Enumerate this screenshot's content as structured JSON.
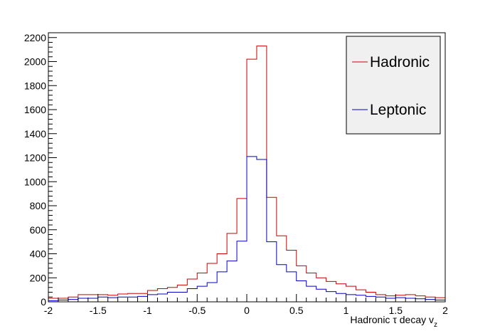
{
  "chart_data": {
    "type": "line",
    "title": "",
    "xlabel": "Hadronic τ decay v",
    "xlabel_sub": "z",
    "ylabel": "",
    "xlim": [
      -2,
      2
    ],
    "ylim": [
      0,
      2240
    ],
    "x_ticks": [
      -2,
      -1.5,
      -1,
      -0.5,
      0,
      0.5,
      1,
      1.5,
      2
    ],
    "x_tick_labels": [
      "-2",
      "-1.5",
      "-1",
      "-0.5",
      "0",
      "0.5",
      "1",
      "1.5",
      "2"
    ],
    "y_ticks": [
      0,
      200,
      400,
      600,
      800,
      1000,
      1200,
      1400,
      1600,
      1800,
      2000,
      2200
    ],
    "y_tick_labels": [
      "0",
      "200",
      "400",
      "600",
      "800",
      "1000",
      "1200",
      "1400",
      "1600",
      "1800",
      "2000",
      "2200"
    ],
    "grid": false,
    "legend_position": "top-right",
    "bin_edges": [
      -2.0,
      -1.9,
      -1.8,
      -1.7,
      -1.6,
      -1.5,
      -1.4,
      -1.3,
      -1.2,
      -1.1,
      -1.0,
      -0.9,
      -0.8,
      -0.7,
      -0.6,
      -0.5,
      -0.4,
      -0.3,
      -0.2,
      -0.1,
      0.0,
      0.1,
      0.2,
      0.3,
      0.4,
      0.5,
      0.6,
      0.7,
      0.8,
      0.9,
      1.0,
      1.1,
      1.2,
      1.3,
      1.4,
      1.5,
      1.6,
      1.7,
      1.8,
      1.9,
      2.0
    ],
    "series": [
      {
        "name": "Hadronic",
        "color": "#cc0000",
        "values": [
          30,
          30,
          40,
          60,
          60,
          60,
          55,
          65,
          70,
          70,
          95,
          110,
          120,
          140,
          190,
          240,
          320,
          400,
          570,
          860,
          2020,
          2130,
          870,
          550,
          430,
          300,
          240,
          200,
          170,
          150,
          130,
          100,
          80,
          60,
          50,
          55,
          60,
          50,
          40,
          35
        ]
      },
      {
        "name": "Leptonic",
        "color": "#0000cc",
        "values": [
          10,
          15,
          20,
          30,
          30,
          40,
          35,
          40,
          40,
          45,
          60,
          65,
          80,
          80,
          110,
          130,
          160,
          250,
          340,
          505,
          1210,
          1185,
          500,
          310,
          250,
          175,
          130,
          105,
          85,
          70,
          60,
          55,
          45,
          40,
          30,
          35,
          30,
          25,
          20,
          15
        ]
      }
    ]
  }
}
